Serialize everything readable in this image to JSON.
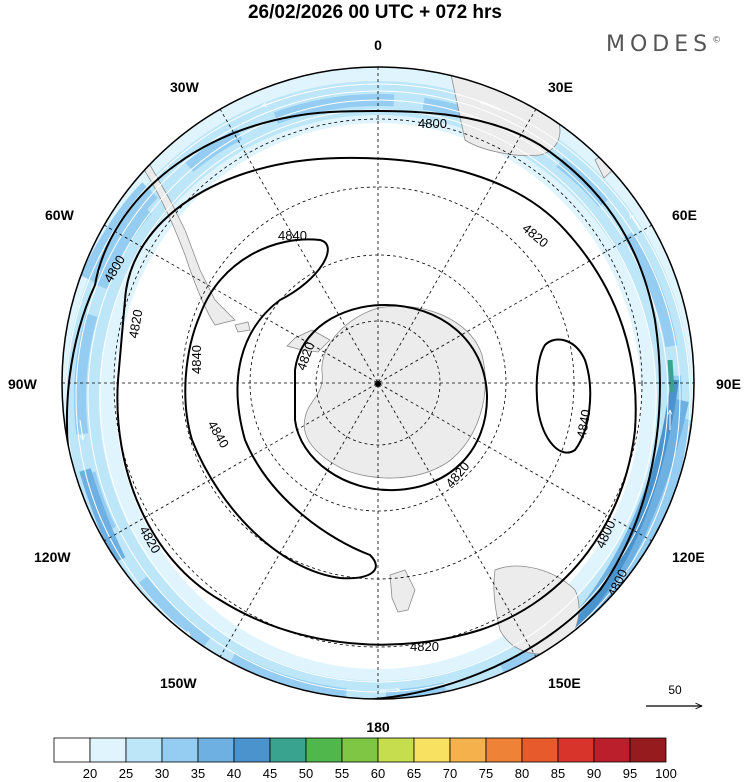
{
  "title": "26/02/2026  00 UTC  + 072 hrs",
  "brand": {
    "name": "MODES",
    "mark": "©"
  },
  "map": {
    "projection": "south-polar-stereographic",
    "longitude_labels": {
      "top": "0",
      "bottom": "180",
      "left": "90W",
      "right": "90E",
      "30W": "30W",
      "30E": "30E",
      "60W": "60W",
      "60E": "60E",
      "120W": "120W",
      "120E": "120E",
      "150W": "150W",
      "150E": "150E"
    },
    "contour_labels": {
      "c1": "4800",
      "c2": "4800",
      "c3": "4800",
      "c4": "4800",
      "c5": "4820",
      "c6": "4820",
      "c7": "4820",
      "c8": "4820",
      "c9": "4820",
      "c10": "4820",
      "c11": "4840",
      "c12": "4840",
      "c13": "4840",
      "c14": "4840"
    },
    "wind_scale": {
      "label": "50"
    },
    "colors": {
      "land": "#ececec",
      "coast": "#8c8c8c",
      "contour": "#000000"
    }
  },
  "colorbar": {
    "labels": [
      "20",
      "25",
      "30",
      "35",
      "40",
      "45",
      "50",
      "55",
      "60",
      "65",
      "70",
      "75",
      "80",
      "85",
      "90",
      "95",
      "100"
    ],
    "colors": [
      "#ffffff",
      "#dff4fd",
      "#bde6f9",
      "#94cdf1",
      "#6eb0e1",
      "#4b93cd",
      "#3aa38f",
      "#4fb74b",
      "#7fc645",
      "#c6dd4d",
      "#f8e060",
      "#f5b14c",
      "#ee8236",
      "#e65a2b",
      "#d9342b",
      "#bb1f2c",
      "#951b1f"
    ]
  }
}
